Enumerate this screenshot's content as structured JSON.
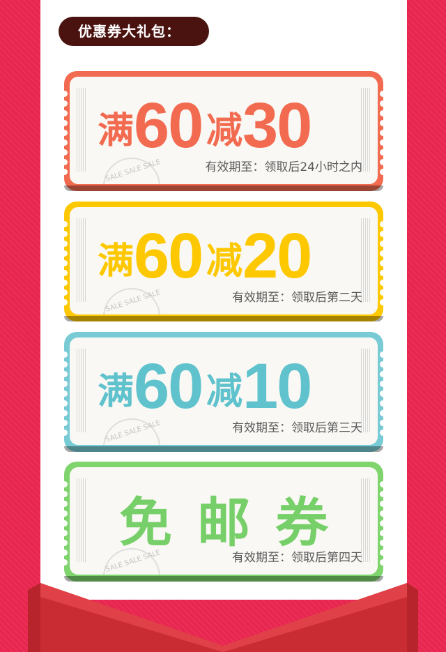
{
  "header": {
    "title": "优惠券大礼包："
  },
  "stamp_text": "SALE SALE SALE",
  "coupons": [
    {
      "prefix": "满",
      "amount": "60",
      "middle": "减",
      "discount": "30",
      "validity": "有效期至：领取后24小时之内",
      "color": "#f26b50"
    },
    {
      "prefix": "满",
      "amount": "60",
      "middle": "减",
      "discount": "20",
      "validity": "有效期至：领取后第二天",
      "color": "#fdc800"
    },
    {
      "prefix": "满",
      "amount": "60",
      "middle": "减",
      "discount": "10",
      "validity": "有效期至：领取后第三天",
      "color": "#78cbd4"
    }
  ],
  "free_shipping": {
    "label": "免邮券",
    "validity": "有效期至：领取后第四天",
    "color": "#7fd46e"
  },
  "colors": {
    "background": "#e8264f",
    "pill": "#4a130f",
    "ribbon": "#d9353a"
  }
}
